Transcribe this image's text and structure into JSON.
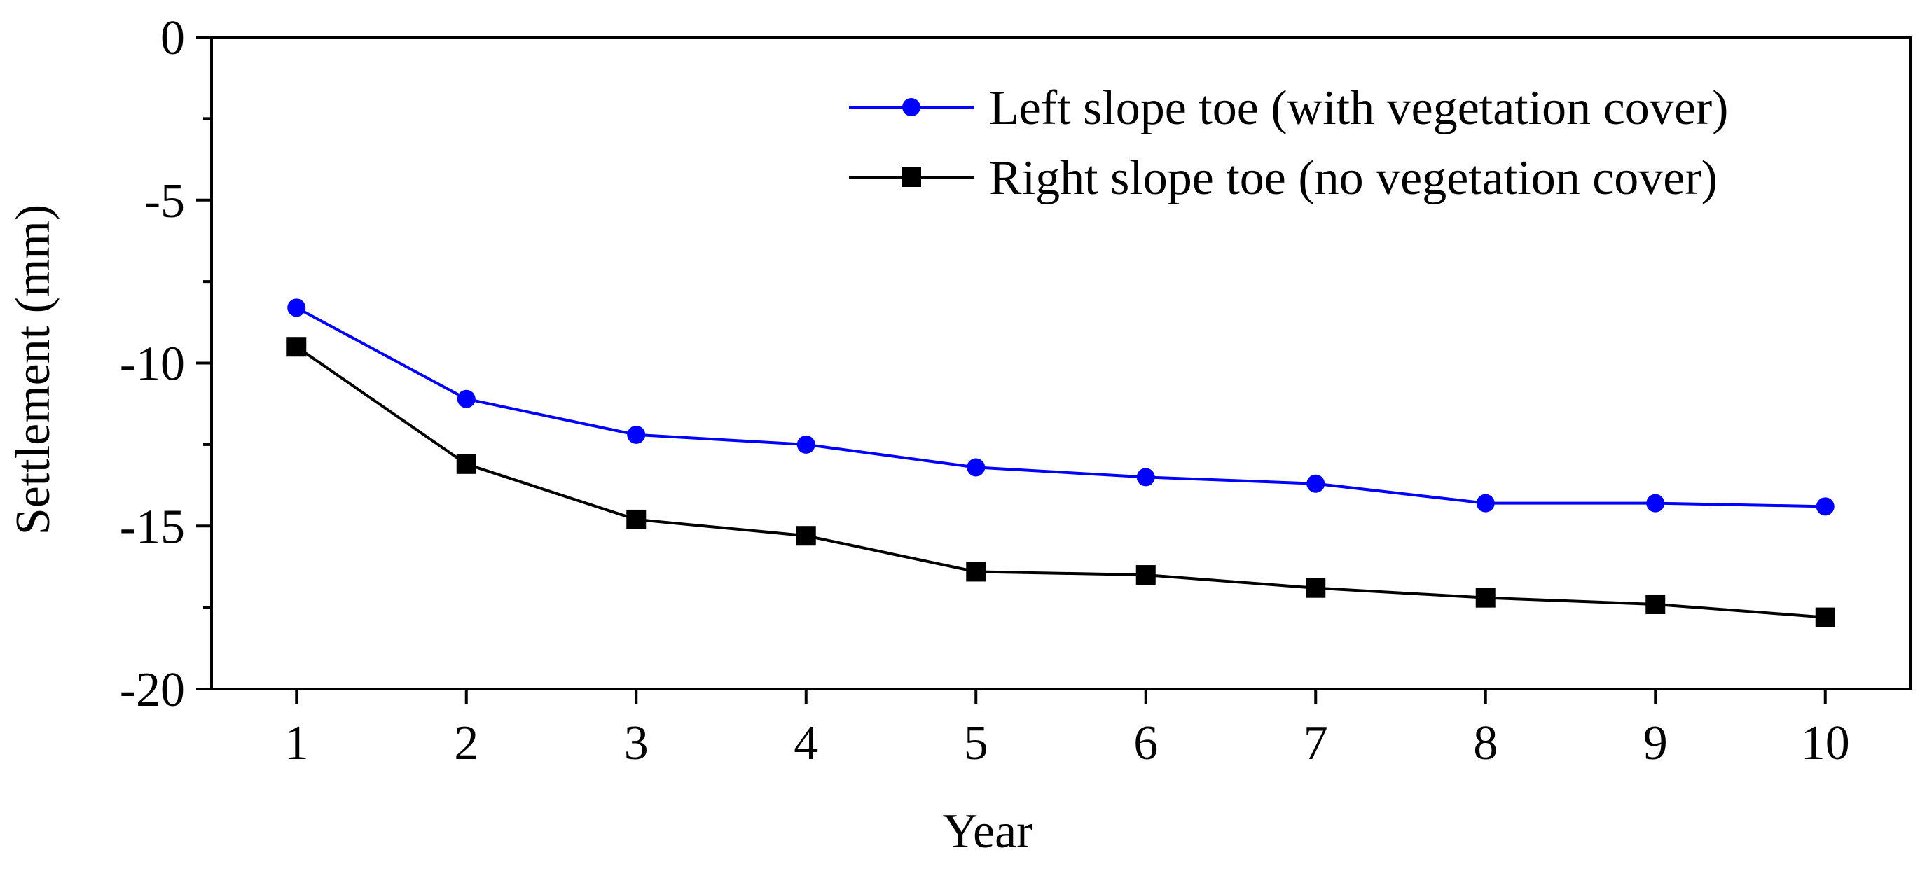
{
  "chart_data": {
    "type": "line",
    "xlabel": "Year",
    "ylabel": "Settlement (mm)",
    "x": [
      1,
      2,
      3,
      4,
      5,
      6,
      7,
      8,
      9,
      10
    ],
    "xlim": [
      0.5,
      10.5
    ],
    "ylim": [
      -20,
      0
    ],
    "xticks": [
      "1",
      "2",
      "3",
      "4",
      "5",
      "6",
      "7",
      "8",
      "9",
      "10"
    ],
    "yticks": [
      {
        "value": 0,
        "label": "0"
      },
      {
        "value": -5,
        "label": "-5"
      },
      {
        "value": -10,
        "label": "-10"
      },
      {
        "value": -15,
        "label": "-15"
      },
      {
        "value": -20,
        "label": "-20"
      }
    ],
    "grid": false,
    "legend_position": "top-right",
    "series": [
      {
        "name": "Left slope toe (with vegetation cover)",
        "color": "#0000ff",
        "marker": "circle",
        "values": [
          -8.3,
          -11.1,
          -12.2,
          -12.5,
          -13.2,
          -13.5,
          -13.7,
          -14.3,
          -14.3,
          -14.4
        ]
      },
      {
        "name": "Right slope toe (no vegetation cover)",
        "color": "#000000",
        "marker": "square",
        "values": [
          -9.5,
          -13.1,
          -14.8,
          -15.3,
          -16.4,
          -16.5,
          -16.9,
          -17.2,
          -17.4,
          -17.8
        ]
      }
    ]
  }
}
